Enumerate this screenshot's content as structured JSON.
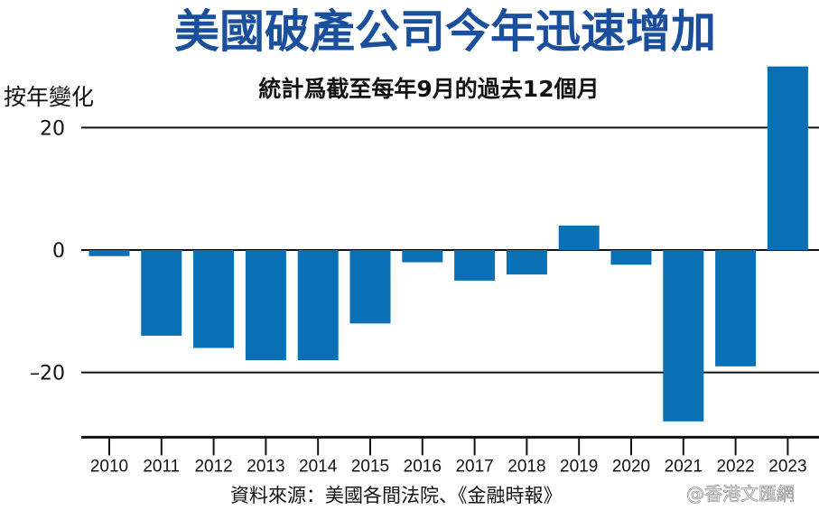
{
  "chart_data": {
    "type": "bar",
    "title": "美國破產公司今年迅速增加",
    "subtitle": "統計爲截至每年9月的過去12個月",
    "ylabel": "按年變化",
    "xlabel": "",
    "categories": [
      "2010",
      "2011",
      "2012",
      "2013",
      "2014",
      "2015",
      "2016",
      "2017",
      "2018",
      "2019",
      "2020",
      "2021",
      "2022",
      "2023"
    ],
    "values": [
      -1,
      -14,
      -16,
      -18,
      -18,
      -12,
      -2,
      -5,
      -4,
      4,
      -2.4,
      -28,
      -19,
      30
    ],
    "yticks": [
      20,
      0,
      -20
    ],
    "ytick_labels": [
      "20",
      "0",
      "–20"
    ],
    "ylim": [
      -30,
      30
    ],
    "grid": true,
    "bar_color": "#0a70b6",
    "source": "資料來源：美國各間法院、《金融時報》",
    "watermark": "@香港文匯網"
  }
}
